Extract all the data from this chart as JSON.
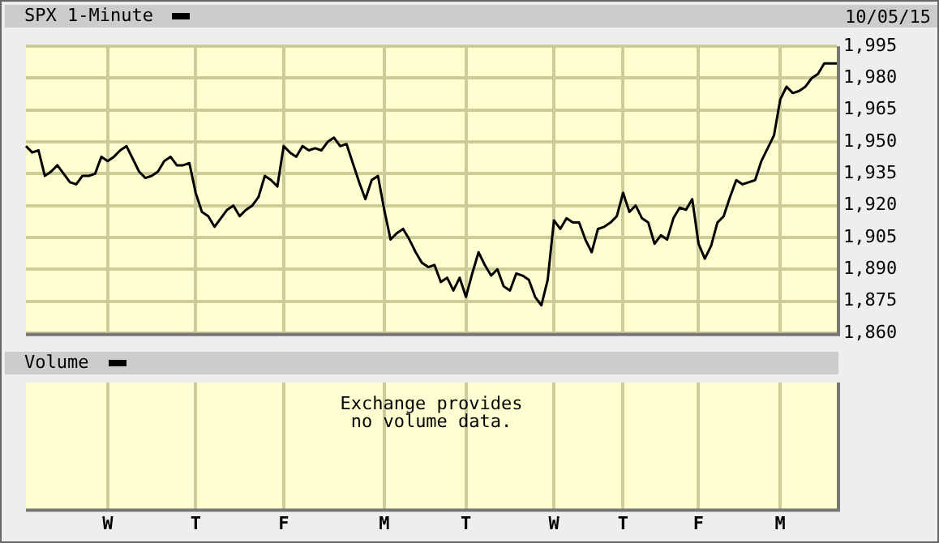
{
  "chart_data": [
    {
      "type": "line",
      "legend": "top left",
      "annotations": [
        "10/05/15"
      ],
      "categories": [
        null,
        null,
        null,
        null,
        null,
        null,
        null,
        null,
        null,
        null,
        null,
        null,
        null,
        "W",
        null,
        null,
        null,
        null,
        null,
        null,
        null,
        null,
        null,
        null,
        null,
        null,
        null,
        "T",
        null,
        null,
        null,
        null,
        null,
        null,
        null,
        null,
        null,
        null,
        null,
        null,
        null,
        "F",
        null,
        null,
        null,
        null,
        null,
        null,
        null,
        null,
        null,
        null,
        null,
        null,
        null,
        null,
        null,
        "M",
        null,
        null,
        null,
        null,
        null,
        null,
        null,
        null,
        null,
        null,
        null,
        null,
        "T",
        null,
        null,
        null,
        null,
        null,
        null,
        null,
        null,
        null,
        null,
        null,
        null,
        null,
        "W",
        null,
        null,
        null,
        null,
        null,
        null,
        null,
        null,
        null,
        null,
        "T",
        null,
        null,
        null,
        null,
        null,
        null,
        null,
        null,
        null,
        null,
        null,
        "F",
        null,
        null,
        null,
        null,
        null,
        null,
        null,
        null,
        null,
        null,
        null,
        null,
        "M",
        null,
        null,
        null,
        null,
        null,
        null,
        null,
        null,
        null
      ],
      "ylim": [
        1860,
        1995
      ],
      "yticks": [
        {
          "value": 1860,
          "label": "1,860"
        },
        {
          "value": 1875,
          "label": "1,875"
        },
        {
          "value": 1890,
          "label": "1,890"
        },
        {
          "value": 1905,
          "label": "1,905"
        },
        {
          "value": 1920,
          "label": "1,920"
        },
        {
          "value": 1935,
          "label": "1,935"
        },
        {
          "value": 1950,
          "label": "1,950"
        },
        {
          "value": 1965,
          "label": "1,965"
        },
        {
          "value": 1980,
          "label": "1,980"
        },
        {
          "value": 1995,
          "label": "1,995"
        }
      ],
      "grid": true,
      "tick_labels": "y",
      "marker": "none",
      "line_style": "solid",
      "series": [
        {
          "name": "SPX 1-Minute",
          "color": "#000000",
          "values": [
            1948,
            1945,
            1946,
            1934,
            1936,
            1939,
            1935,
            1931,
            1930,
            1934,
            1934,
            1935,
            1943,
            1941,
            1943,
            1946,
            1948,
            1942,
            1936,
            1933,
            1934,
            1936,
            1941,
            1943,
            1939,
            1939,
            1940,
            1926,
            1917,
            1915,
            1910,
            1914,
            1918,
            1920,
            1915,
            1918,
            1920,
            1924,
            1934,
            1932,
            1929,
            1948,
            1945,
            1943,
            1948,
            1946,
            1947,
            1946,
            1950,
            1952,
            1948,
            1949,
            1940,
            1931,
            1923,
            1932,
            1934,
            1918,
            1904,
            1907,
            1909,
            1904,
            1898,
            1893,
            1891,
            1892,
            1884,
            1886,
            1880,
            1886,
            1877,
            1888,
            1898,
            1892,
            1887,
            1890,
            1882,
            1880,
            1888,
            1887,
            1885,
            1877,
            1873,
            1885,
            1913,
            1909,
            1914,
            1912,
            1912,
            1904,
            1898,
            1909,
            1910,
            1912,
            1915,
            1926,
            1917,
            1920,
            1914,
            1912,
            1902,
            1906,
            1904,
            1914,
            1919,
            1918,
            1923,
            1902,
            1895,
            1901,
            1912,
            1915,
            1924,
            1932,
            1930,
            1931,
            1932,
            1941,
            1947,
            1953,
            1970,
            1976,
            1973,
            1974,
            1976,
            1980,
            1982,
            1987,
            1987,
            1987
          ]
        }
      ]
    },
    {
      "type": "other",
      "title": "Volume",
      "annotations": [
        "Exchange provides\nno volume data."
      ]
    }
  ]
}
